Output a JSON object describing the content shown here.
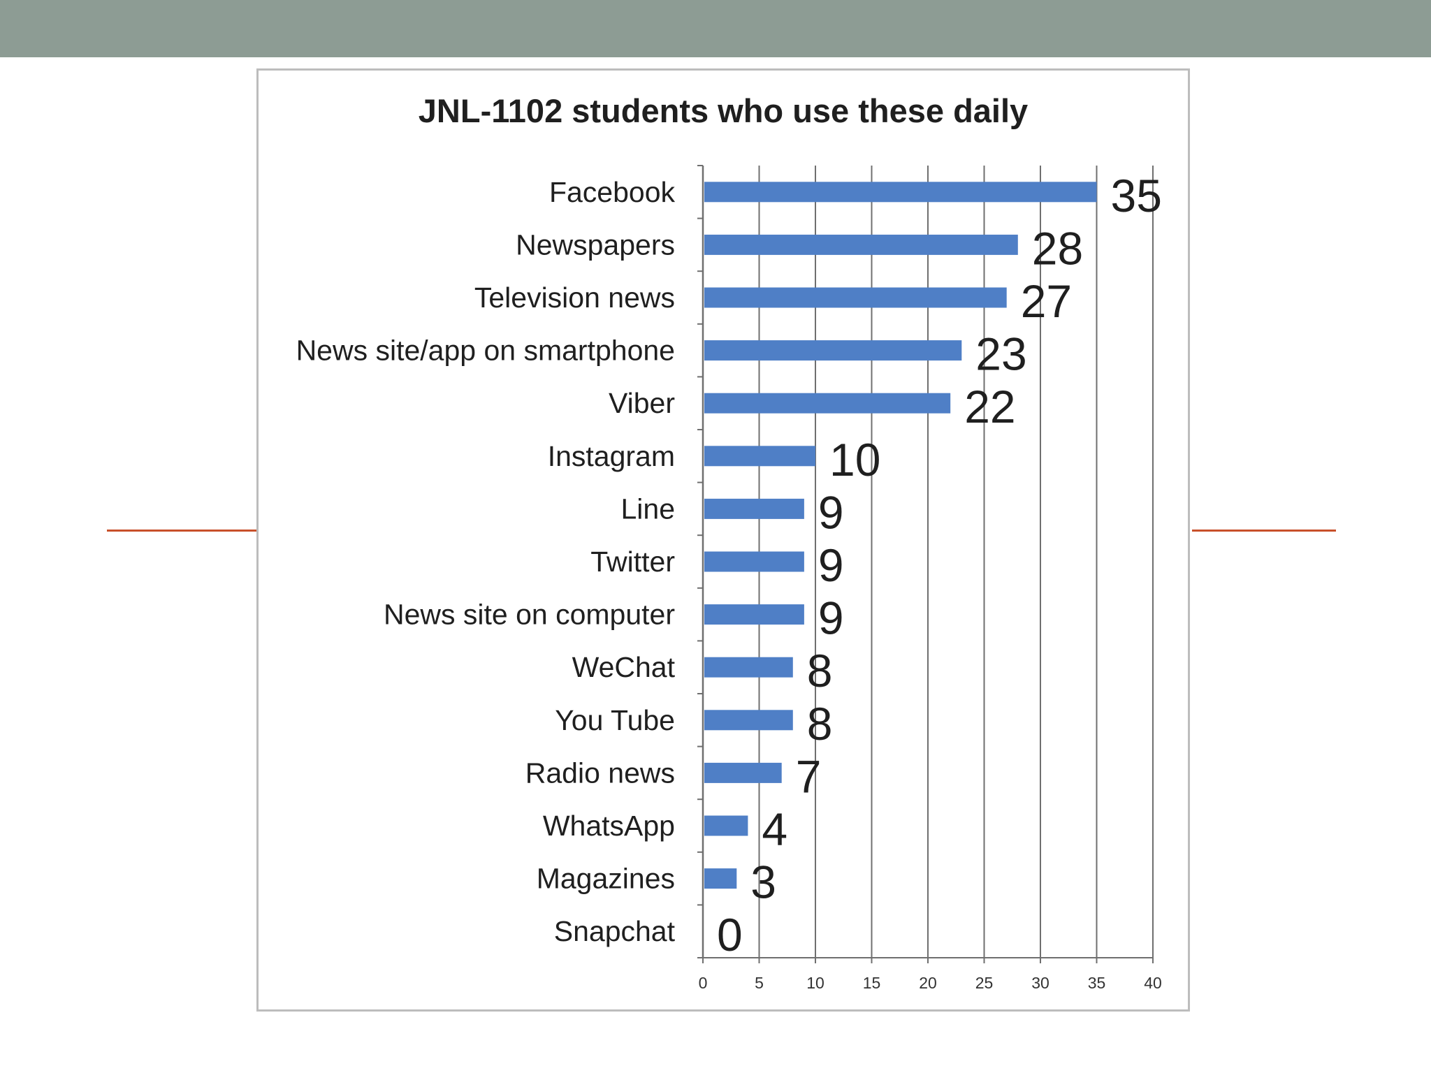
{
  "colors": {
    "header_band": "#8d9c94",
    "accent_line": "#c8502a",
    "bar": "#4f7fc6",
    "grid": "#6f6f6f",
    "frame": "#bdbdbd"
  },
  "chart_data": {
    "type": "bar",
    "orientation": "horizontal",
    "title": "JNL-1102  students who use these daily",
    "xlabel": "",
    "ylabel": "",
    "xlim": [
      0,
      40
    ],
    "xticks": [
      0,
      5,
      10,
      15,
      20,
      25,
      30,
      35,
      40
    ],
    "grid": true,
    "legend": "none",
    "categories": [
      "Facebook",
      "Newspapers",
      "Television news",
      "News site/app on smartphone",
      "Viber",
      "Instagram",
      "Line",
      "Twitter",
      "News site on computer",
      "WeChat",
      "You Tube",
      "Radio news",
      "WhatsApp",
      "Magazines",
      "Snapchat"
    ],
    "values": [
      35,
      28,
      27,
      23,
      22,
      10,
      9,
      9,
      9,
      8,
      8,
      7,
      4,
      3,
      0
    ]
  }
}
